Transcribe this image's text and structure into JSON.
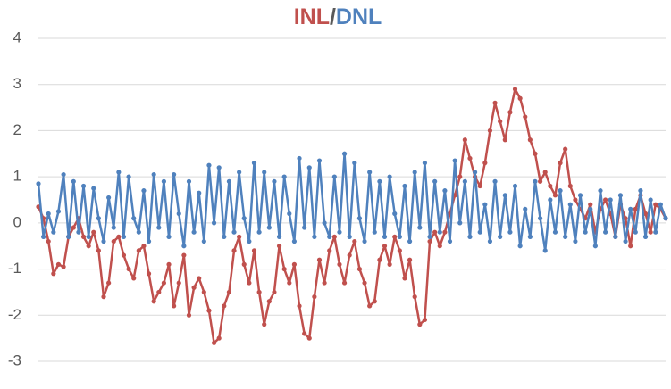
{
  "chart_data": {
    "type": "line",
    "title": "INL/DNL",
    "series": [
      {
        "name": "INL",
        "color": "#c0504d",
        "values": [
          0.35,
          0.1,
          -0.4,
          -1.1,
          -0.9,
          -0.95,
          -0.3,
          -0.1,
          0.1,
          -0.3,
          -0.5,
          -0.2,
          -0.6,
          -1.6,
          -1.3,
          -0.4,
          -0.3,
          -0.7,
          -1.0,
          -1.2,
          -0.6,
          -0.5,
          -1.1,
          -1.7,
          -1.5,
          -1.3,
          -0.9,
          -1.8,
          -1.3,
          -0.7,
          -2.0,
          -1.4,
          -1.2,
          -1.5,
          -1.9,
          -2.6,
          -2.5,
          -1.8,
          -1.5,
          -0.6,
          -0.3,
          -0.9,
          -1.3,
          -0.6,
          -1.5,
          -2.2,
          -1.7,
          -1.5,
          -0.5,
          -1.0,
          -1.3,
          -0.9,
          -1.8,
          -2.4,
          -2.5,
          -1.6,
          -0.8,
          -1.3,
          -0.6,
          -0.3,
          -0.9,
          -1.3,
          -0.7,
          -0.4,
          -1.0,
          -1.3,
          -1.8,
          -1.7,
          -0.8,
          -0.5,
          -0.9,
          -0.3,
          -0.6,
          -1.2,
          -0.8,
          -1.6,
          -2.2,
          -2.1,
          -0.4,
          -0.2,
          -0.5,
          -0.2,
          0.2,
          0.6,
          1.0,
          1.8,
          1.4,
          1.0,
          0.8,
          1.3,
          2.0,
          2.6,
          2.2,
          1.8,
          2.4,
          2.9,
          2.7,
          2.3,
          1.8,
          1.5,
          0.9,
          1.1,
          0.8,
          0.6,
          1.3,
          1.6,
          0.8,
          0.5,
          0.3,
          0.1,
          0.4,
          -0.2,
          0.3,
          0.5,
          0.2,
          -0.3,
          0.4,
          0.1,
          -0.5,
          0.3,
          0.6,
          0.2,
          -0.2,
          0.4,
          0.3,
          0.1
        ]
      },
      {
        "name": "DNL",
        "color": "#4f81bd",
        "values": [
          0.85,
          -0.3,
          0.2,
          -0.2,
          0.25,
          1.05,
          -0.3,
          0.9,
          -0.2,
          0.8,
          -0.3,
          0.75,
          0.1,
          -0.4,
          0.55,
          -0.1,
          1.1,
          -0.3,
          1.0,
          0.1,
          -0.2,
          0.7,
          -0.4,
          1.05,
          -0.1,
          0.9,
          -0.3,
          1.05,
          0.2,
          -0.5,
          0.9,
          -0.2,
          0.65,
          -0.4,
          1.25,
          0.0,
          1.2,
          -0.3,
          0.9,
          -0.2,
          1.1,
          0.1,
          -0.4,
          1.3,
          -0.2,
          1.1,
          -0.1,
          0.9,
          -0.3,
          1.0,
          0.2,
          -0.4,
          1.4,
          -0.1,
          1.2,
          -0.3,
          1.35,
          0.0,
          -0.3,
          1.0,
          -0.2,
          1.5,
          -0.3,
          1.3,
          0.1,
          -0.4,
          1.1,
          -0.2,
          0.9,
          -0.3,
          1.0,
          0.2,
          -0.3,
          0.8,
          -0.4,
          1.1,
          -0.1,
          1.3,
          -0.3,
          0.9,
          -0.2,
          0.7,
          -0.4,
          1.35,
          0.0,
          0.9,
          -0.3,
          1.1,
          -0.2,
          0.4,
          -0.4,
          0.9,
          -0.3,
          0.6,
          -0.2,
          0.8,
          -0.5,
          0.3,
          -0.3,
          0.9,
          0.1,
          -0.6,
          0.5,
          -0.2,
          0.7,
          -0.3,
          0.4,
          -0.4,
          0.6,
          -0.2,
          0.3,
          -0.5,
          0.7,
          -0.2,
          0.5,
          -0.3,
          0.6,
          -0.4,
          0.3,
          -0.2,
          0.7,
          -0.3,
          0.5,
          -0.2,
          0.4,
          0.1
        ]
      }
    ],
    "ylim": [
      -3,
      4
    ],
    "yticks": [
      -3,
      -2,
      -1,
      0,
      1,
      2,
      3,
      4
    ],
    "grid": true
  }
}
